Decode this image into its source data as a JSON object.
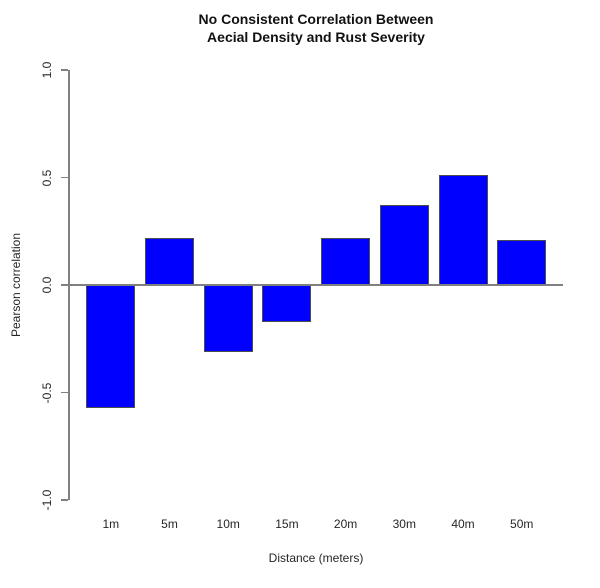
{
  "chart_data": {
    "type": "bar",
    "title_line1": "No Consistent Correlation Between",
    "title_line2": "Aecial Density and Rust Severity",
    "categories": [
      "1m",
      "5m",
      "10m",
      "15m",
      "20m",
      "30m",
      "40m",
      "50m"
    ],
    "values": [
      -0.57,
      0.22,
      -0.31,
      -0.17,
      0.22,
      0.37,
      0.51,
      0.21
    ],
    "xlabel": "Distance (meters)",
    "ylabel": "Pearson correlation",
    "ylim": [
      -1.0,
      1.0
    ],
    "ytick_labels": [
      "1.0",
      "0.5",
      "0.0",
      "-0.5",
      "-1.0"
    ],
    "legend_position": "none",
    "grid": false,
    "bar_color": "#0000ff",
    "bar_border_color": "#4d4d4d",
    "axis_color": "#808080",
    "text_color": "#262626"
  }
}
